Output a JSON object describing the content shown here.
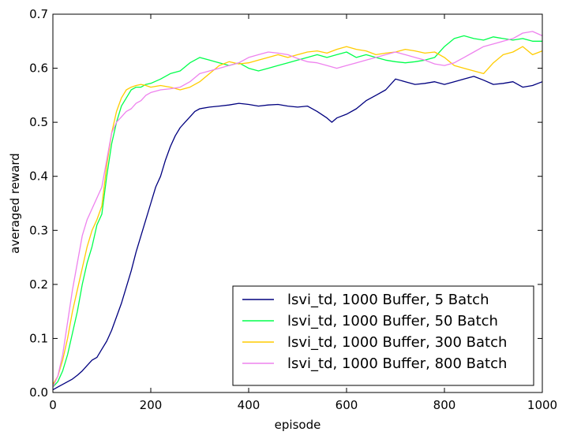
{
  "chart_data": {
    "type": "line",
    "xlabel": "episode",
    "ylabel": "averaged reward",
    "xlim": [
      0,
      1000
    ],
    "ylim": [
      0,
      0.7
    ],
    "xticks": [
      0,
      200,
      400,
      600,
      800,
      1000
    ],
    "yticks": [
      0.0,
      0.1,
      0.2,
      0.3,
      0.4,
      0.5,
      0.6,
      0.7
    ],
    "xtick_labels": [
      "0",
      "200",
      "400",
      "600",
      "800",
      "1000"
    ],
    "ytick_labels": [
      "0.0",
      "0.1",
      "0.2",
      "0.3",
      "0.4",
      "0.5",
      "0.6",
      "0.7"
    ],
    "legend": "lower-right",
    "grid": false,
    "series": [
      {
        "name": "lsvi_td, 1000 Buffer, 5 Batch",
        "color": "#00007f",
        "x": [
          0,
          10,
          20,
          30,
          40,
          50,
          60,
          70,
          80,
          90,
          100,
          110,
          120,
          130,
          140,
          150,
          160,
          170,
          180,
          190,
          200,
          210,
          220,
          230,
          240,
          250,
          260,
          270,
          280,
          290,
          300,
          320,
          340,
          360,
          380,
          400,
          420,
          440,
          460,
          480,
          500,
          520,
          540,
          560,
          570,
          580,
          600,
          620,
          640,
          660,
          680,
          700,
          720,
          740,
          760,
          780,
          800,
          820,
          840,
          860,
          880,
          900,
          920,
          940,
          960,
          980,
          1000
        ],
        "y": [
          0.005,
          0.01,
          0.015,
          0.02,
          0.025,
          0.032,
          0.04,
          0.05,
          0.06,
          0.065,
          0.08,
          0.095,
          0.115,
          0.14,
          0.165,
          0.195,
          0.225,
          0.26,
          0.29,
          0.32,
          0.35,
          0.38,
          0.4,
          0.43,
          0.455,
          0.475,
          0.49,
          0.5,
          0.51,
          0.52,
          0.525,
          0.528,
          0.53,
          0.532,
          0.535,
          0.533,
          0.53,
          0.532,
          0.533,
          0.53,
          0.528,
          0.53,
          0.52,
          0.508,
          0.5,
          0.508,
          0.515,
          0.525,
          0.54,
          0.55,
          0.56,
          0.58,
          0.575,
          0.57,
          0.572,
          0.575,
          0.57,
          0.575,
          0.58,
          0.585,
          0.578,
          0.57,
          0.572,
          0.575,
          0.565,
          0.568,
          0.575
        ]
      },
      {
        "name": "lsvi_td, 1000 Buffer, 50 Batch",
        "color": "#00ff4c",
        "x": [
          0,
          10,
          20,
          30,
          40,
          50,
          60,
          70,
          80,
          90,
          100,
          110,
          120,
          130,
          140,
          150,
          160,
          170,
          180,
          190,
          200,
          220,
          240,
          260,
          280,
          300,
          320,
          340,
          360,
          380,
          400,
          420,
          440,
          460,
          480,
          500,
          520,
          540,
          560,
          580,
          600,
          620,
          640,
          660,
          680,
          700,
          720,
          740,
          760,
          780,
          800,
          820,
          840,
          860,
          880,
          900,
          920,
          940,
          960,
          980,
          1000
        ],
        "y": [
          0.01,
          0.02,
          0.04,
          0.07,
          0.11,
          0.15,
          0.2,
          0.24,
          0.27,
          0.31,
          0.33,
          0.4,
          0.46,
          0.5,
          0.53,
          0.545,
          0.56,
          0.565,
          0.565,
          0.57,
          0.572,
          0.58,
          0.59,
          0.595,
          0.61,
          0.62,
          0.615,
          0.61,
          0.605,
          0.61,
          0.6,
          0.595,
          0.6,
          0.605,
          0.61,
          0.615,
          0.62,
          0.625,
          0.62,
          0.625,
          0.63,
          0.62,
          0.625,
          0.62,
          0.615,
          0.612,
          0.61,
          0.612,
          0.615,
          0.62,
          0.64,
          0.655,
          0.66,
          0.655,
          0.652,
          0.658,
          0.655,
          0.652,
          0.655,
          0.65,
          0.65
        ]
      },
      {
        "name": "lsvi_td, 1000 Buffer, 300 Batch",
        "color": "#ffcc00",
        "x": [
          0,
          10,
          20,
          30,
          40,
          50,
          60,
          70,
          80,
          90,
          100,
          110,
          120,
          130,
          140,
          150,
          160,
          170,
          180,
          190,
          200,
          220,
          240,
          260,
          280,
          300,
          320,
          340,
          360,
          380,
          400,
          420,
          440,
          460,
          480,
          500,
          520,
          540,
          560,
          580,
          600,
          620,
          640,
          660,
          680,
          700,
          720,
          740,
          760,
          780,
          800,
          820,
          840,
          860,
          880,
          900,
          920,
          940,
          960,
          980,
          1000
        ],
        "y": [
          0.015,
          0.03,
          0.06,
          0.1,
          0.15,
          0.19,
          0.23,
          0.27,
          0.3,
          0.32,
          0.345,
          0.42,
          0.48,
          0.52,
          0.545,
          0.56,
          0.565,
          0.568,
          0.57,
          0.568,
          0.565,
          0.568,
          0.565,
          0.56,
          0.565,
          0.575,
          0.59,
          0.605,
          0.612,
          0.608,
          0.61,
          0.615,
          0.62,
          0.625,
          0.62,
          0.625,
          0.63,
          0.632,
          0.628,
          0.635,
          0.64,
          0.635,
          0.632,
          0.625,
          0.628,
          0.63,
          0.635,
          0.632,
          0.628,
          0.63,
          0.62,
          0.605,
          0.6,
          0.595,
          0.59,
          0.61,
          0.625,
          0.63,
          0.64,
          0.625,
          0.632
        ]
      },
      {
        "name": "lsvi_td, 1000 Buffer, 800 Batch",
        "color": "#ee82ee",
        "x": [
          0,
          10,
          20,
          30,
          40,
          50,
          60,
          70,
          80,
          90,
          100,
          110,
          120,
          130,
          140,
          150,
          160,
          170,
          180,
          190,
          200,
          220,
          240,
          260,
          280,
          300,
          320,
          340,
          360,
          380,
          400,
          420,
          440,
          460,
          480,
          500,
          520,
          540,
          560,
          580,
          600,
          620,
          640,
          660,
          680,
          700,
          720,
          740,
          760,
          780,
          800,
          820,
          840,
          860,
          880,
          900,
          920,
          940,
          960,
          980,
          1000
        ],
        "y": [
          0.01,
          0.03,
          0.07,
          0.13,
          0.19,
          0.24,
          0.29,
          0.32,
          0.34,
          0.36,
          0.38,
          0.43,
          0.48,
          0.5,
          0.51,
          0.52,
          0.525,
          0.535,
          0.54,
          0.55,
          0.555,
          0.56,
          0.562,
          0.565,
          0.575,
          0.59,
          0.595,
          0.6,
          0.605,
          0.61,
          0.62,
          0.625,
          0.63,
          0.628,
          0.625,
          0.618,
          0.612,
          0.61,
          0.605,
          0.6,
          0.605,
          0.61,
          0.615,
          0.62,
          0.625,
          0.63,
          0.625,
          0.62,
          0.615,
          0.608,
          0.605,
          0.61,
          0.62,
          0.63,
          0.64,
          0.645,
          0.65,
          0.655,
          0.665,
          0.668,
          0.66
        ]
      }
    ]
  }
}
